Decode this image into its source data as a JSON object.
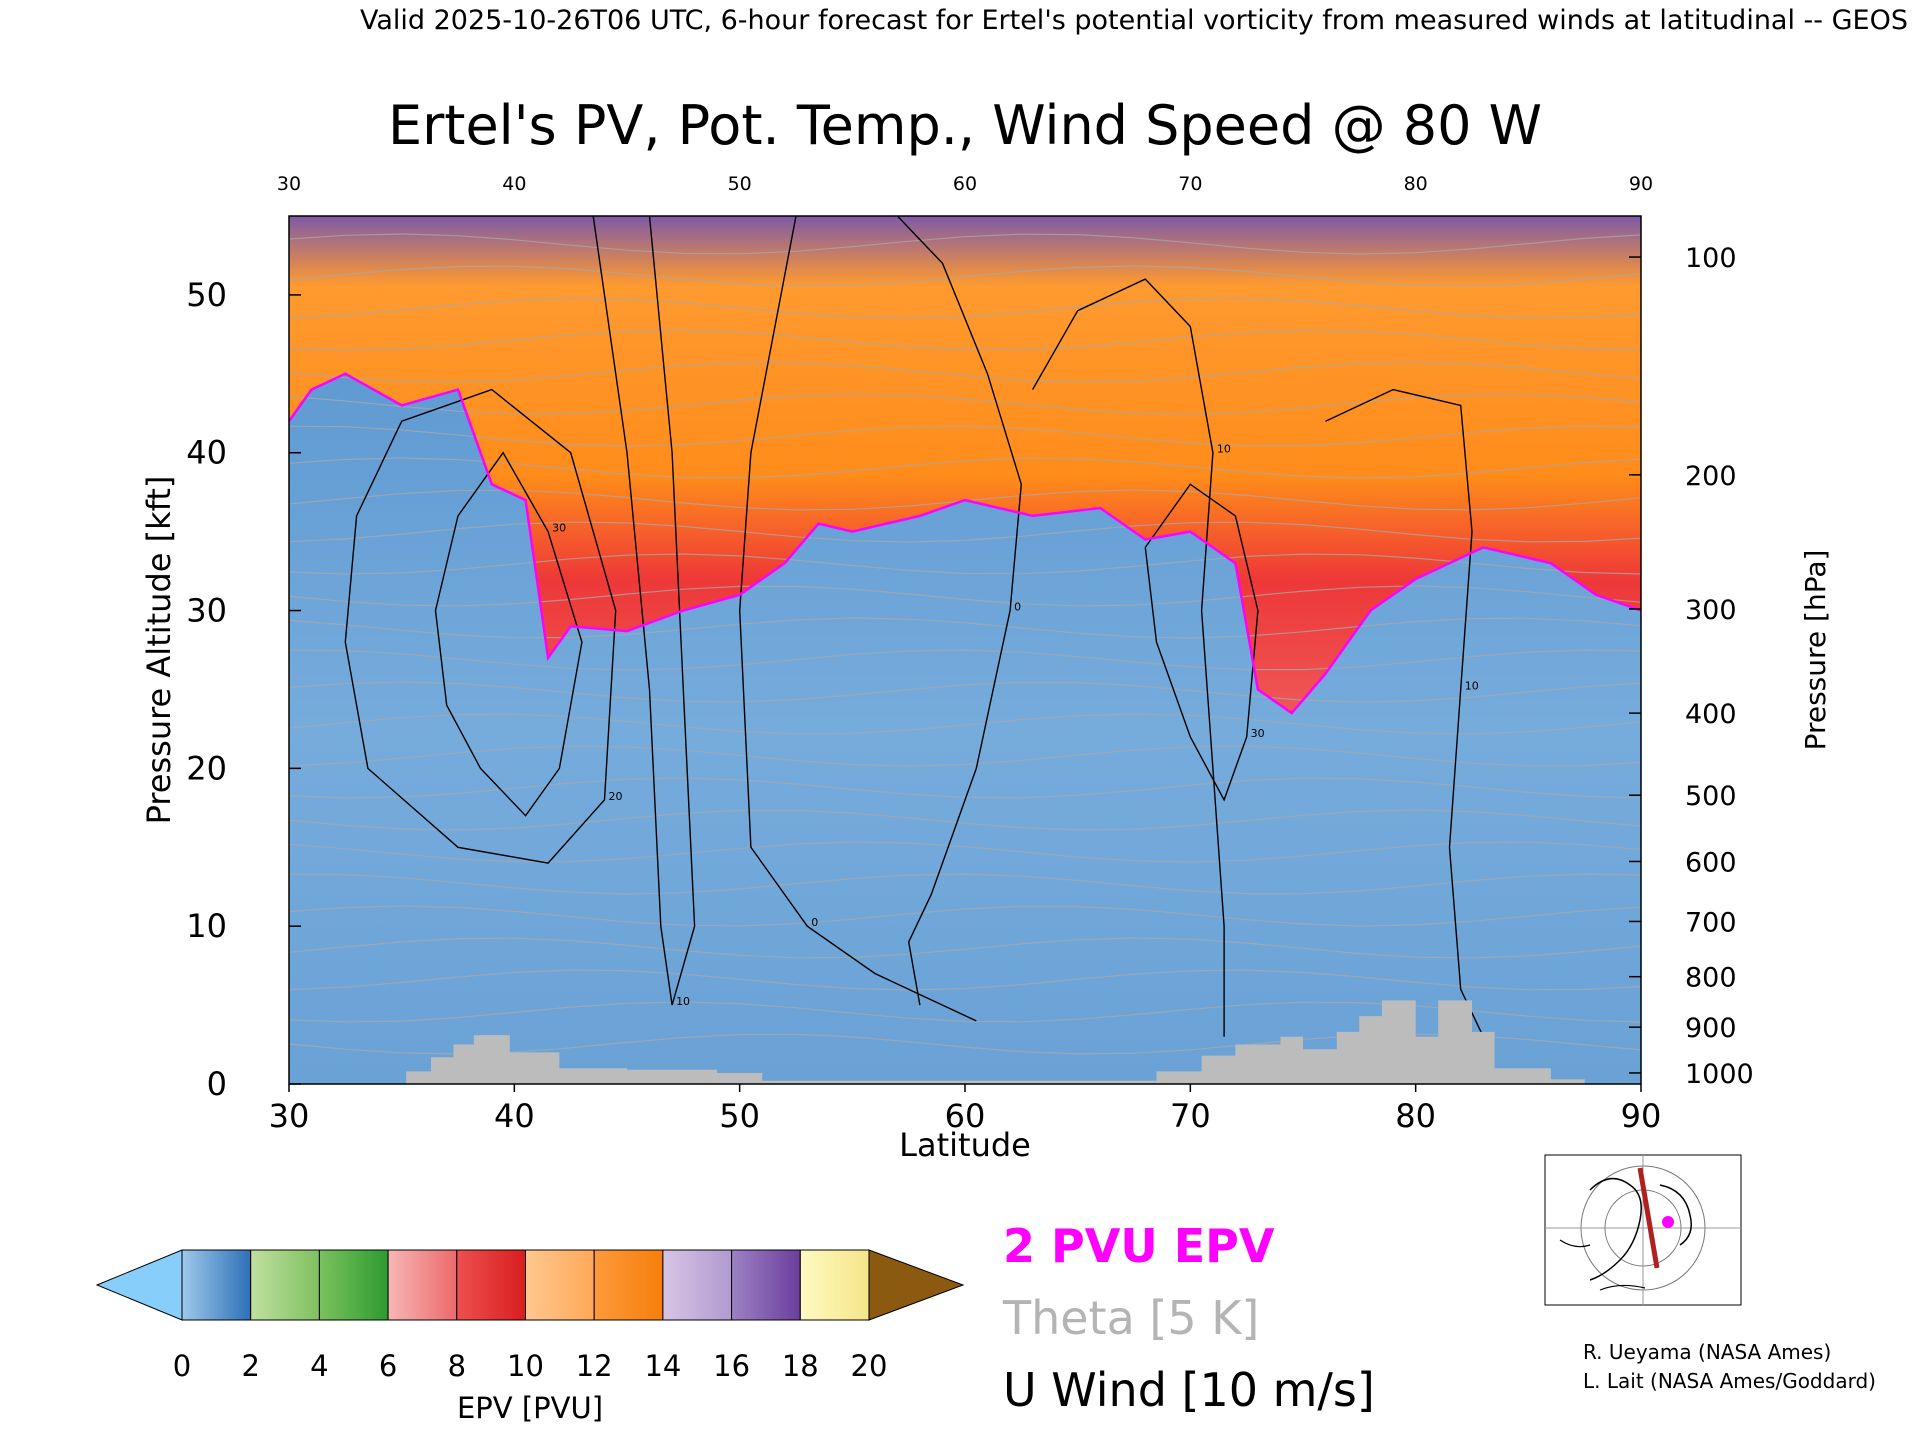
{
  "header": {
    "valid_line": "Valid 2025-10-26T06 UTC, 6-hour forecast for Ertel's potential vorticity from measured winds at latitudinal -- GEOS"
  },
  "chart_data": {
    "type": "heatmap",
    "title": "Ertel's PV, Pot. Temp., Wind Speed @ 80 W",
    "xlabel": "Latitude",
    "ylabel_left": "Pressure Altitude [kft]",
    "ylabel_right": "Pressure [hPa]",
    "xlim": [
      30,
      90
    ],
    "ylim": [
      0,
      55
    ],
    "x_ticks": [
      30,
      40,
      50,
      60,
      70,
      80,
      90
    ],
    "top_ticks": [
      "30",
      "40",
      "50",
      "60",
      "70",
      "80",
      "90"
    ],
    "bottom_ticks": [
      "30",
      "40",
      "50",
      "60",
      "70",
      "80",
      "90"
    ],
    "y_ticks": [
      "0",
      "10",
      "20",
      "30",
      "40",
      "50"
    ],
    "y_tick_values": [
      0,
      10,
      20,
      30,
      40,
      50
    ],
    "pressure_ticks": [
      {
        "label": "100",
        "kft": 52.4
      },
      {
        "label": "200",
        "kft": 38.6
      },
      {
        "label": "300",
        "kft": 30.1
      },
      {
        "label": "400",
        "kft": 23.5
      },
      {
        "label": "500",
        "kft": 18.3
      },
      {
        "label": "600",
        "kft": 14.1
      },
      {
        "label": "700",
        "kft": 10.3
      },
      {
        "label": "800",
        "kft": 6.8
      },
      {
        "label": "900",
        "kft": 3.6
      },
      {
        "label": "1000",
        "kft": 0.7
      }
    ],
    "tropopause_2pvu_kft": [
      {
        "lat": 30,
        "kft": 42
      },
      {
        "lat": 31,
        "kft": 44
      },
      {
        "lat": 32.5,
        "kft": 45
      },
      {
        "lat": 35,
        "kft": 43
      },
      {
        "lat": 37.5,
        "kft": 44
      },
      {
        "lat": 39,
        "kft": 38
      },
      {
        "lat": 40.5,
        "kft": 37
      },
      {
        "lat": 41.5,
        "kft": 27
      },
      {
        "lat": 42.5,
        "kft": 29
      },
      {
        "lat": 45,
        "kft": 28.7
      },
      {
        "lat": 47.5,
        "kft": 30
      },
      {
        "lat": 50,
        "kft": 31
      },
      {
        "lat": 52,
        "kft": 33
      },
      {
        "lat": 53.5,
        "kft": 35.5
      },
      {
        "lat": 55,
        "kft": 35
      },
      {
        "lat": 58,
        "kft": 36
      },
      {
        "lat": 60,
        "kft": 37
      },
      {
        "lat": 63,
        "kft": 36
      },
      {
        "lat": 66,
        "kft": 36.5
      },
      {
        "lat": 68,
        "kft": 34.5
      },
      {
        "lat": 70,
        "kft": 35
      },
      {
        "lat": 72,
        "kft": 33
      },
      {
        "lat": 73,
        "kft": 25
      },
      {
        "lat": 74.5,
        "kft": 23.5
      },
      {
        "lat": 76,
        "kft": 26
      },
      {
        "lat": 78,
        "kft": 30
      },
      {
        "lat": 80,
        "kft": 32
      },
      {
        "lat": 83,
        "kft": 34
      },
      {
        "lat": 86,
        "kft": 33
      },
      {
        "lat": 88,
        "kft": 31
      },
      {
        "lat": 90,
        "kft": 30
      }
    ],
    "wind_contours": [
      {
        "label": "30",
        "points": [
          [
            38.5,
            20
          ],
          [
            37,
            24
          ],
          [
            36.5,
            30
          ],
          [
            37.5,
            36
          ],
          [
            39.5,
            40
          ],
          [
            41.5,
            35
          ],
          [
            43,
            28
          ],
          [
            42,
            20
          ],
          [
            40.5,
            17
          ],
          [
            38.5,
            20
          ]
        ]
      },
      {
        "label": "20",
        "points": [
          [
            33,
            36
          ],
          [
            35,
            42
          ],
          [
            39,
            44
          ],
          [
            42.5,
            40
          ],
          [
            44.5,
            30
          ],
          [
            44,
            18
          ],
          [
            41.5,
            14
          ],
          [
            37.5,
            15
          ],
          [
            33.5,
            20
          ],
          [
            32.5,
            28
          ],
          [
            33,
            36
          ]
        ]
      },
      {
        "label": "10",
        "points": [
          [
            43.5,
            55
          ],
          [
            45,
            40
          ],
          [
            46,
            25
          ],
          [
            46.5,
            10
          ],
          [
            47,
            5
          ],
          [
            48,
            10
          ],
          [
            47.5,
            25
          ],
          [
            47,
            40
          ],
          [
            46,
            55
          ]
        ]
      },
      {
        "label": "0",
        "points": [
          [
            52.5,
            55
          ],
          [
            50.5,
            40
          ],
          [
            50,
            30
          ],
          [
            50.5,
            15
          ],
          [
            53,
            10
          ],
          [
            56,
            7
          ],
          [
            59,
            5
          ],
          [
            60.5,
            4
          ]
        ]
      },
      {
        "label": "0",
        "points": [
          [
            57,
            55
          ],
          [
            59,
            52
          ],
          [
            61,
            45
          ],
          [
            62.5,
            38
          ],
          [
            62,
            30
          ],
          [
            60.5,
            20
          ],
          [
            58.5,
            12
          ],
          [
            57.5,
            9
          ],
          [
            58,
            5
          ]
        ]
      },
      {
        "label": "10",
        "points": [
          [
            63,
            44
          ],
          [
            65,
            49
          ],
          [
            68,
            51
          ],
          [
            70,
            48
          ],
          [
            71,
            40
          ],
          [
            70.5,
            30
          ],
          [
            71,
            20
          ],
          [
            71.5,
            10
          ],
          [
            71.5,
            3
          ]
        ]
      },
      {
        "label": "10",
        "points": [
          [
            76,
            42
          ],
          [
            79,
            44
          ],
          [
            82,
            43
          ],
          [
            82.5,
            35
          ],
          [
            82,
            25
          ],
          [
            81.5,
            15
          ],
          [
            82,
            6
          ],
          [
            83,
            3
          ]
        ]
      },
      {
        "label": "30",
        "points": [
          [
            68,
            34
          ],
          [
            70,
            38
          ],
          [
            72,
            36
          ],
          [
            73,
            30
          ],
          [
            72.5,
            22
          ],
          [
            71.5,
            18
          ],
          [
            70,
            22
          ],
          [
            68.5,
            28
          ],
          [
            68,
            34
          ]
        ]
      }
    ],
    "terrain_kft": [
      {
        "lat": 30,
        "kft": 0
      },
      {
        "lat": 35,
        "kft": 0
      },
      {
        "lat": 35.2,
        "kft": 0.8
      },
      {
        "lat": 36.3,
        "kft": 1.7
      },
      {
        "lat": 37.3,
        "kft": 2.5
      },
      {
        "lat": 38.2,
        "kft": 3.1
      },
      {
        "lat": 39.8,
        "kft": 2
      },
      {
        "lat": 42,
        "kft": 1
      },
      {
        "lat": 45,
        "kft": 0.9
      },
      {
        "lat": 49,
        "kft": 0.7
      },
      {
        "lat": 51,
        "kft": 0.2
      },
      {
        "lat": 67.8,
        "kft": 0.2
      },
      {
        "lat": 68.5,
        "kft": 0.8
      },
      {
        "lat": 70.5,
        "kft": 1.8
      },
      {
        "lat": 72,
        "kft": 2.5
      },
      {
        "lat": 74,
        "kft": 3
      },
      {
        "lat": 75,
        "kft": 2.2
      },
      {
        "lat": 76.5,
        "kft": 3.3
      },
      {
        "lat": 77.5,
        "kft": 4.3
      },
      {
        "lat": 78.5,
        "kft": 5.3
      },
      {
        "lat": 80,
        "kft": 3
      },
      {
        "lat": 81,
        "kft": 5.3
      },
      {
        "lat": 82.5,
        "kft": 3.3
      },
      {
        "lat": 83.5,
        "kft": 1
      },
      {
        "lat": 86,
        "kft": 0.3
      },
      {
        "lat": 87.5,
        "kft": 0
      },
      {
        "lat": 90,
        "kft": 0
      }
    ],
    "colorbar": {
      "label": "EPV [PVU]",
      "min": 0,
      "max": 20,
      "step": 2,
      "tick_labels": [
        "0",
        "2",
        "4",
        "6",
        "8",
        "10",
        "12",
        "14",
        "16",
        "18",
        "20"
      ],
      "below_color": "#87cefa",
      "above_color": "#8b5a10",
      "segments": [
        {
          "from": "#9ec9ea",
          "to": "#2e70b8"
        },
        {
          "from": "#bfe0a0",
          "to": "#80c060"
        },
        {
          "from": "#7bc25e",
          "to": "#2e9a30"
        },
        {
          "from": "#f7b6b6",
          "to": "#ec6a6a"
        },
        {
          "from": "#ee5050",
          "to": "#d81e1e"
        },
        {
          "from": "#ffc890",
          "to": "#ffa858"
        },
        {
          "from": "#ff9a3a",
          "to": "#f57e0c"
        },
        {
          "from": "#d8c4e4",
          "to": "#b09ad0"
        },
        {
          "from": "#9c82c4",
          "to": "#6a3e9c"
        },
        {
          "from": "#fffac0",
          "to": "#f4e58a"
        }
      ]
    },
    "legend": [
      {
        "text": "2 PVU EPV",
        "color": "#ff00ff"
      },
      {
        "text": "Theta [5 K]",
        "color": "#b4b4b4"
      },
      {
        "text": "U Wind [10 m/s]",
        "color": "#000000"
      }
    ]
  },
  "inset": {
    "credit_1": "R. Ueyama (NASA Ames)",
    "credit_2": "L. Lait (NASA Ames/Goddard)"
  },
  "colors": {
    "tropopause": "#ff00ff",
    "terrain": "#bcbcbc",
    "theta": "#a8a8a8",
    "troposphere_blue": "#6aa6d8"
  }
}
